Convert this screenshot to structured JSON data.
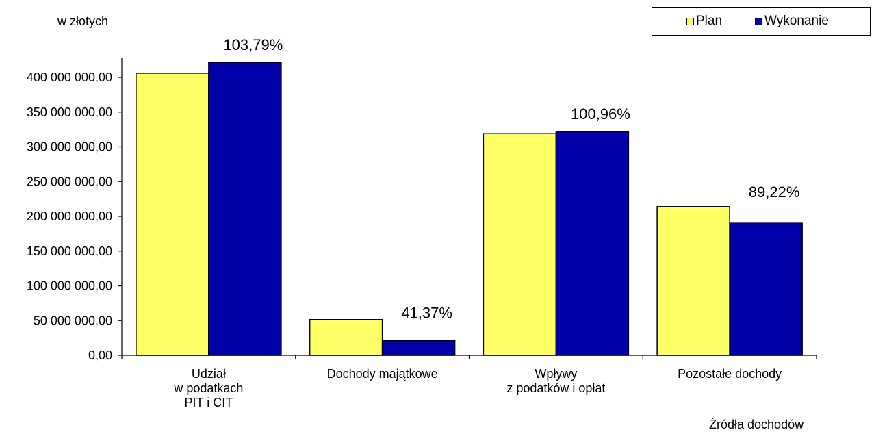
{
  "chart_data": {
    "type": "bar",
    "ylabel": "w złotych",
    "xlabel": "Źródła dochodów",
    "categories": [
      [
        "Udział",
        "w podatkach",
        "PIT i CIT"
      ],
      [
        "Dochody majątkowe"
      ],
      [
        "Wpływy",
        "z podatków i opłat"
      ],
      [
        "Pozostałe dochody"
      ]
    ],
    "series": [
      {
        "name": "Plan",
        "color": "#FFFF66",
        "values": [
          406000000,
          51500000,
          319000000,
          214000000
        ]
      },
      {
        "name": "Wykonanie",
        "color": "#0000A8",
        "values": [
          421500000,
          21300000,
          322000000,
          191000000
        ]
      }
    ],
    "percent_labels": [
      "103,79%",
      "41,37%",
      "100,96%",
      "89,22%"
    ],
    "ylim": [
      0,
      400000000
    ],
    "yticks": [
      "0,00",
      "50 000 000,00",
      "100 000 000,00",
      "150 000 000,00",
      "200 000 000,00",
      "250 000 000,00",
      "300 000 000,00",
      "350 000 000,00",
      "400 000 000,00"
    ],
    "ytick_step": 50000000,
    "legend": "top-right",
    "grid": false
  }
}
